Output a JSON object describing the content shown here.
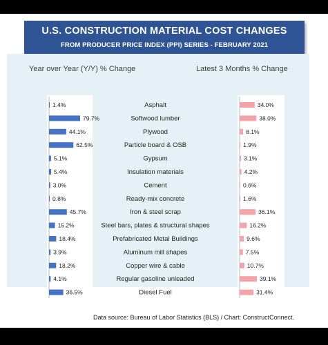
{
  "title": "U.S. CONSTRUCTION MATERIAL COST CHANGES",
  "subtitle": "FROM PRODUCER PRICE INDEX (PPI) SERIES - FEBRUARY 2021",
  "source": "Data source: Bureau of Labor Statistics (BLS) / Chart: ConstructConnect.",
  "colors": {
    "banner": "#2f5496",
    "yoy_bar": "#4472c4",
    "three_month_bar": "#f4a3a8",
    "panel": "#e6f0f7"
  },
  "chart_data": {
    "type": "bar",
    "categories": [
      "Asphalt",
      "Softwood lumber",
      "Plywood",
      "Particle board & OSB",
      "Gypsum",
      "Insulation materials",
      "Cement",
      "Ready-mix concrete",
      "Iron & steel scrap",
      "Steel bars, plates & structural shapes",
      "Prefabricated Metal Buildings",
      "Aluminum mill shapes",
      "Copper wire & cable",
      "Regular gasoline unleaded",
      "Diesel Fuel"
    ],
    "series": [
      {
        "name": "Year over Year (Y/Y) % Change",
        "values": [
          1.4,
          79.7,
          44.1,
          62.5,
          5.1,
          5.4,
          3.0,
          0.8,
          45.7,
          15.2,
          18.4,
          3.9,
          18.2,
          4.1,
          36.5
        ],
        "labels": [
          "1.4%",
          "79.7%",
          "44.1%",
          "62.5%",
          "5.1%",
          "5.4%",
          "3.0%",
          "0.8%",
          "45.7%",
          "15.2%",
          "18.4%",
          "3.9%",
          "18.2%",
          "4.1%",
          "36.5%"
        ]
      },
      {
        "name": "Latest 3 Months % Change",
        "values": [
          34.0,
          38.0,
          8.1,
          1.9,
          3.1,
          4.2,
          0.6,
          1.6,
          36.1,
          16.2,
          9.6,
          7.5,
          10.7,
          39.1,
          31.4
        ],
        "labels": [
          "34.0%",
          "38.0%",
          "8.1%",
          "1.9%",
          "3.1%",
          "4.2%",
          "0.6%",
          "1.6%",
          "36.1%",
          "16.2%",
          "9.6%",
          "7.5%",
          "10.7%",
          "39.1%",
          "31.4%"
        ]
      }
    ]
  }
}
